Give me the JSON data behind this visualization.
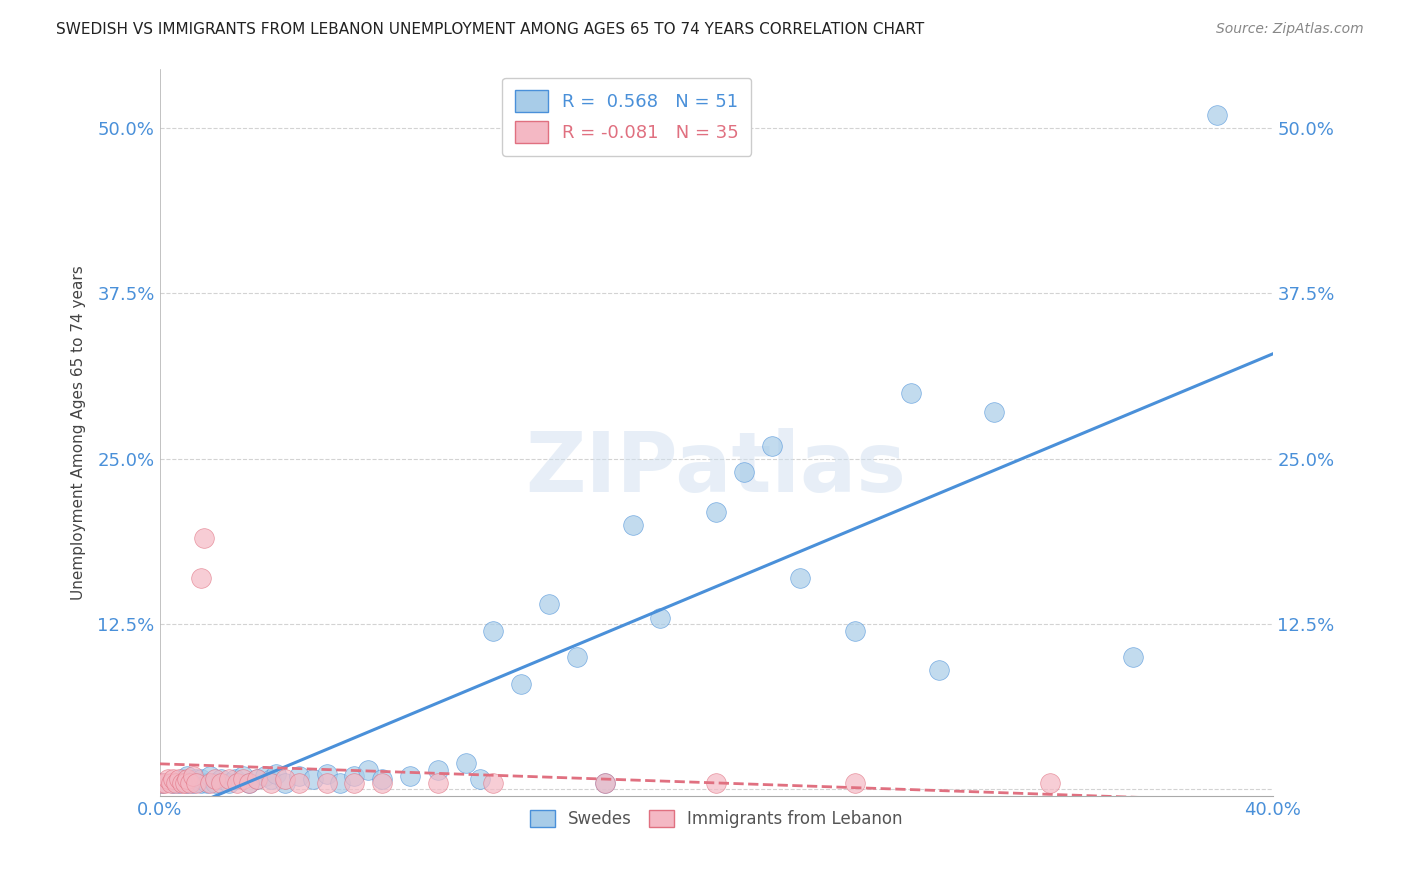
{
  "title": "SWEDISH VS IMMIGRANTS FROM LEBANON UNEMPLOYMENT AMONG AGES 65 TO 74 YEARS CORRELATION CHART",
  "source": "Source: ZipAtlas.com",
  "ylabel": "Unemployment Among Ages 65 to 74 years",
  "xlabel_swedes": "Swedes",
  "xlabel_lebanon": "Immigrants from Lebanon",
  "r_swedes": 0.568,
  "n_swedes": 51,
  "r_lebanon": -0.081,
  "n_lebanon": 35,
  "xlim": [
    0.0,
    0.4
  ],
  "ylim": [
    -0.005,
    0.545
  ],
  "yticks": [
    0.0,
    0.125,
    0.25,
    0.375,
    0.5
  ],
  "ytick_labels": [
    "",
    "12.5%",
    "25.0%",
    "37.5%",
    "50.0%"
  ],
  "xticks": [
    0.0,
    0.1,
    0.2,
    0.3,
    0.4
  ],
  "xtick_labels": [
    "0.0%",
    "",
    "",
    "",
    "40.0%"
  ],
  "swedes_color": "#a8cce8",
  "lebanon_color": "#f4b8c4",
  "line_swedes_color": "#4a90d9",
  "line_lebanon_color": "#e07080",
  "title_color": "#333333",
  "tick_color": "#4a90d9",
  "grid_color": "#c8c8c8",
  "background_color": "#ffffff",
  "swedes_x": [
    0.001,
    0.005,
    0.007,
    0.008,
    0.01,
    0.01,
    0.012,
    0.013,
    0.015,
    0.015,
    0.017,
    0.018,
    0.02,
    0.022,
    0.025,
    0.027,
    0.03,
    0.032,
    0.035,
    0.038,
    0.04,
    0.042,
    0.045,
    0.05,
    0.055,
    0.06,
    0.065,
    0.07,
    0.075,
    0.08,
    0.09,
    0.1,
    0.11,
    0.115,
    0.12,
    0.13,
    0.14,
    0.15,
    0.16,
    0.17,
    0.18,
    0.2,
    0.21,
    0.22,
    0.23,
    0.25,
    0.27,
    0.28,
    0.3,
    0.35,
    0.38
  ],
  "swedes_y": [
    0.005,
    0.005,
    0.005,
    0.008,
    0.005,
    0.01,
    0.005,
    0.008,
    0.005,
    0.008,
    0.005,
    0.01,
    0.005,
    0.008,
    0.005,
    0.008,
    0.01,
    0.005,
    0.008,
    0.01,
    0.008,
    0.012,
    0.005,
    0.01,
    0.008,
    0.012,
    0.005,
    0.01,
    0.015,
    0.008,
    0.01,
    0.015,
    0.02,
    0.008,
    0.12,
    0.08,
    0.14,
    0.1,
    0.005,
    0.2,
    0.13,
    0.21,
    0.24,
    0.26,
    0.16,
    0.12,
    0.3,
    0.09,
    0.285,
    0.1,
    0.51
  ],
  "lebanon_x": [
    0.001,
    0.002,
    0.003,
    0.004,
    0.005,
    0.006,
    0.007,
    0.008,
    0.009,
    0.01,
    0.011,
    0.012,
    0.013,
    0.015,
    0.016,
    0.018,
    0.02,
    0.022,
    0.025,
    0.028,
    0.03,
    0.032,
    0.035,
    0.04,
    0.045,
    0.05,
    0.06,
    0.07,
    0.08,
    0.1,
    0.12,
    0.16,
    0.2,
    0.25,
    0.32
  ],
  "lebanon_y": [
    0.005,
    0.005,
    0.008,
    0.005,
    0.008,
    0.005,
    0.008,
    0.005,
    0.005,
    0.008,
    0.005,
    0.01,
    0.005,
    0.16,
    0.19,
    0.005,
    0.008,
    0.005,
    0.008,
    0.005,
    0.008,
    0.005,
    0.008,
    0.005,
    0.008,
    0.005,
    0.005,
    0.005,
    0.005,
    0.005,
    0.005,
    0.005,
    0.005,
    0.005,
    0.005
  ],
  "swedes_line_x": [
    0.0,
    0.4
  ],
  "swedes_line_y": [
    0.0,
    0.3
  ],
  "lebanon_line_x": [
    0.0,
    0.4
  ],
  "lebanon_line_y": [
    0.02,
    0.005
  ]
}
